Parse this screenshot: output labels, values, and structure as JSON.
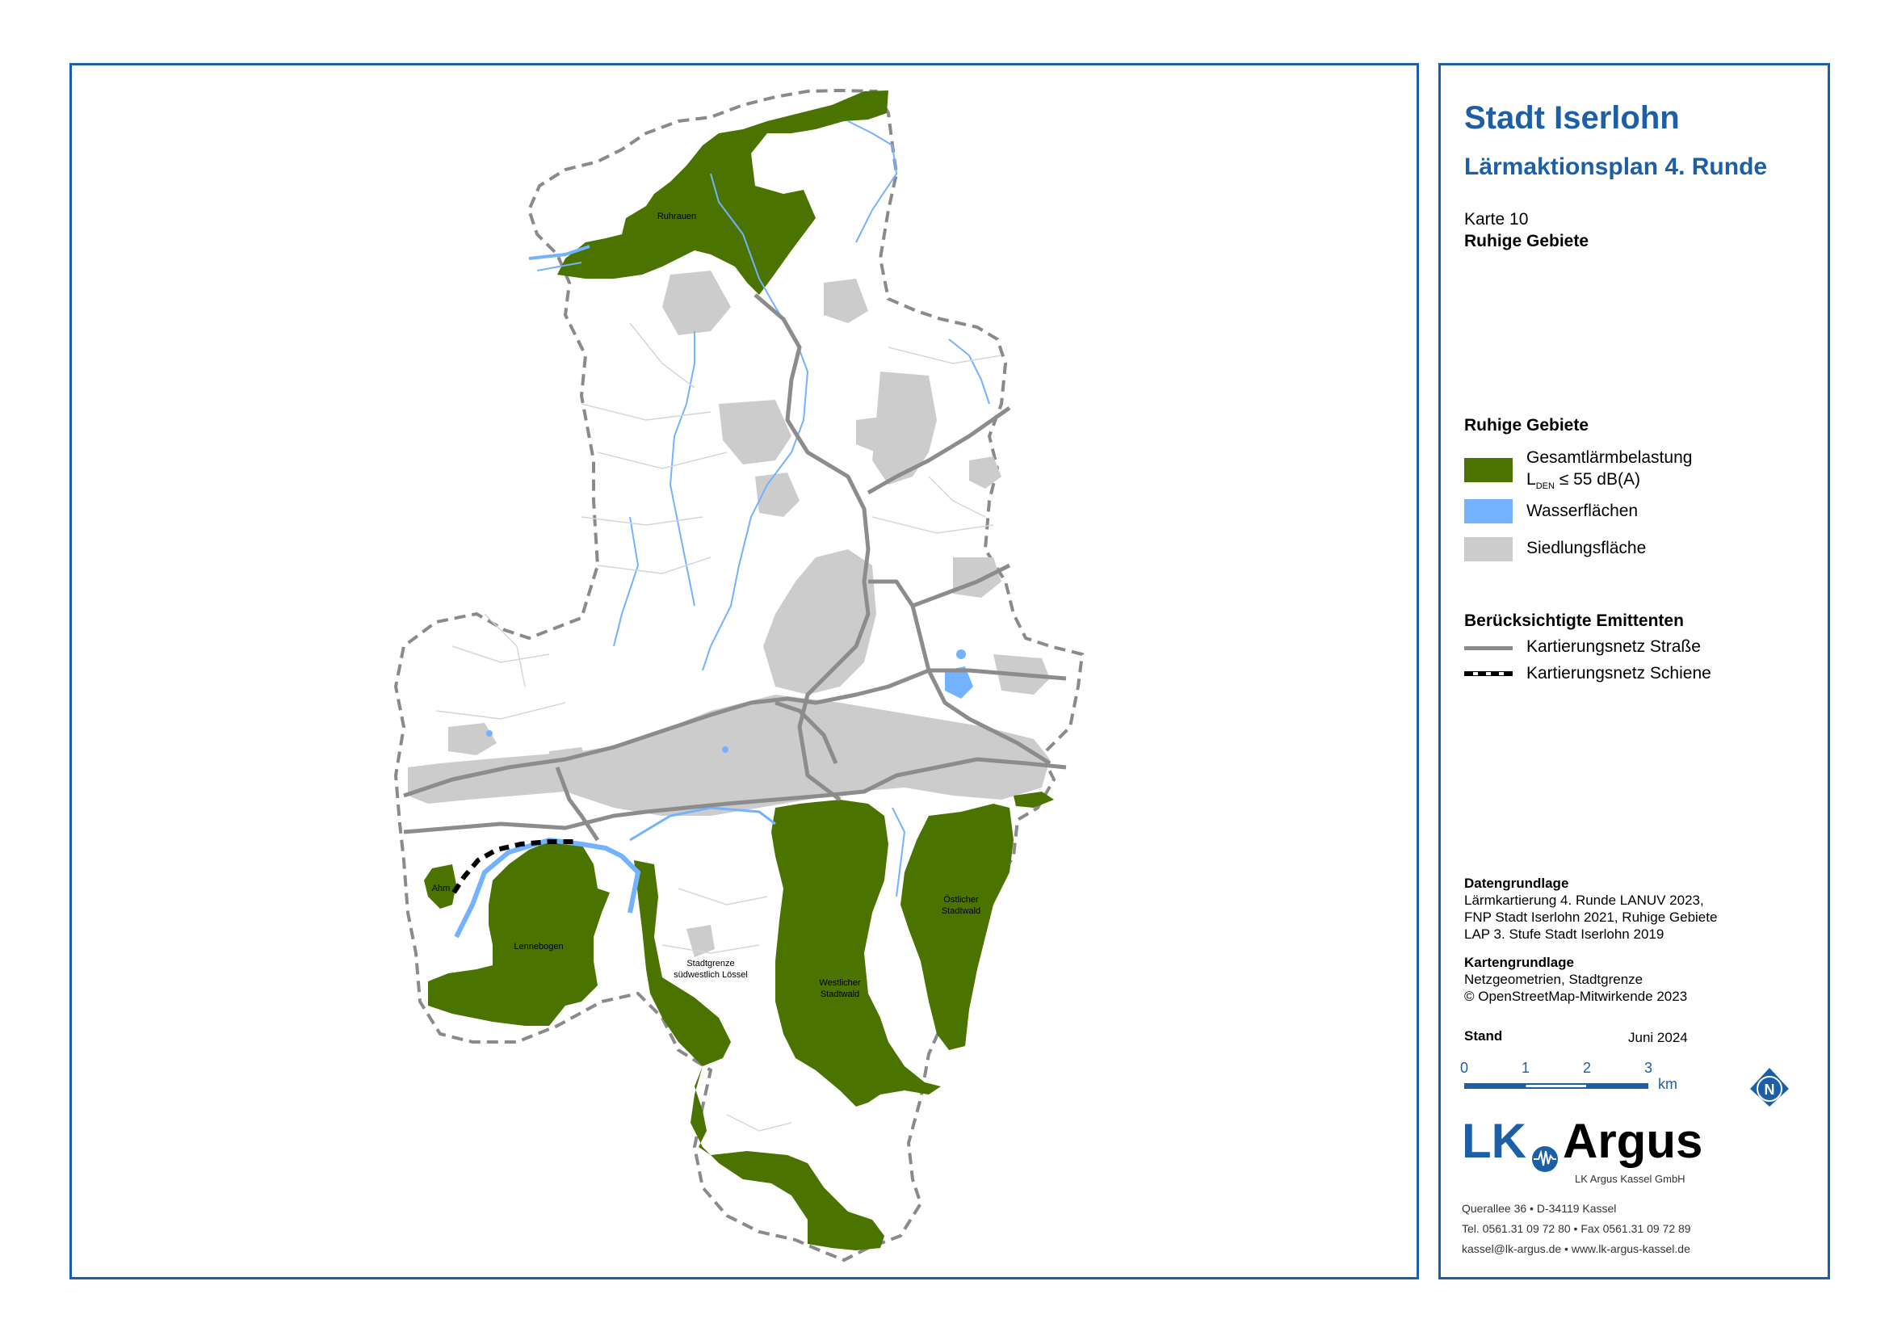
{
  "title": "Stadt Iserlohn",
  "subtitle": "Lärmaktionsplan 4. Runde",
  "map_number": "Karte 10",
  "map_subject": "Ruhige Gebiete",
  "legend": {
    "heading": "Ruhige Gebiete",
    "items": [
      {
        "label_line1": "Gesamtlärmbelastung",
        "label_line2_prefix": "L",
        "label_line2_sub": "DEN",
        "label_line2_rest": " ≤ 55 dB(A)",
        "color": "#4a7300"
      },
      {
        "label": "Wasserflächen",
        "color": "#73b2ff"
      },
      {
        "label": "Siedlungsfläche",
        "color": "#cccccc"
      }
    ],
    "emitters_heading": "Berücksichtigte Emittenten",
    "emitters": [
      {
        "label": "Kartierungsnetz Straße",
        "color": "#8c8c8c"
      },
      {
        "label": "Kartierungsnetz Schiene",
        "color": "#000000"
      }
    ]
  },
  "sources": {
    "data_heading": "Datengrundlage",
    "data_lines": [
      "Lärmkartierung 4. Runde LANUV 2023,",
      "FNP Stadt Iserlohn 2021, Ruhige Gebiete",
      "LAP 3. Stufe Stadt Iserlohn 2019"
    ],
    "map_heading": "Kartengrundlage",
    "map_lines": [
      "Netzgeometrien, Stadtgrenze",
      "© OpenStreetMap-Mitwirkende 2023"
    ]
  },
  "stand": {
    "label": "Stand",
    "value": "Juni 2024"
  },
  "scale": {
    "ticks": [
      "0",
      "1",
      "2",
      "3"
    ],
    "unit": "km"
  },
  "north": "N",
  "company": {
    "logo_left": "LK",
    "logo_right": "Argus",
    "name": "LK Argus Kassel GmbH",
    "address": "Querallee 36  •  D-34119 Kassel",
    "phone": "Tel. 0561.31 09 72 80  •  Fax 0561.31 09 72 89",
    "web": "kassel@lk-argus.de  •  www.lk-argus-kassel.de"
  },
  "areas": [
    {
      "name": "Ruhrauen"
    },
    {
      "name": "Lennebogen"
    },
    {
      "name": "Ahm"
    },
    {
      "name_lines": [
        "Stadtgrenze",
        "südwestlich Lössel"
      ]
    },
    {
      "name_lines": [
        "Westlicher",
        "Stadtwald"
      ]
    },
    {
      "name_lines": [
        "Östlicher",
        "Stadtwald"
      ]
    }
  ],
  "colors": {
    "frame": "#1d5fa6",
    "quiet": "#4a7300",
    "water": "#73b2ff",
    "settlement": "#cccccc",
    "road": "#8c8c8c",
    "boundary": "#8a8a8a"
  }
}
